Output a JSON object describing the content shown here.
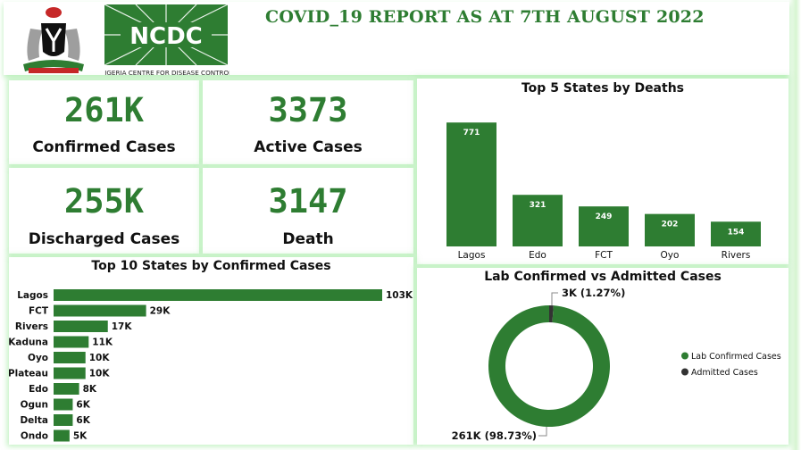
{
  "header": {
    "title": "COVID_19 REPORT AS AT 7TH AUGUST 2022",
    "logo_text": "NCDC",
    "logo_subtext": "NIGERIA CENTRE FOR DISEASE CONTROL",
    "coat_of_arms": "nigeria-coat-of-arms-icon"
  },
  "kpis": {
    "confirmed": {
      "value": "261K",
      "label": "Confirmed Cases"
    },
    "active": {
      "value": "3373",
      "label": "Active Cases"
    },
    "discharged": {
      "value": "255K",
      "label": "Discharged Cases"
    },
    "death": {
      "value": "3147",
      "label": "Death"
    }
  },
  "colors": {
    "accent": "#2e7d32",
    "dark": "#333333",
    "glow": "#8ce68c"
  },
  "chart_data": [
    {
      "type": "bar",
      "title": "Top 5 States by Deaths",
      "categories": [
        "Lagos",
        "Edo",
        "FCT",
        "Oyo",
        "Rivers"
      ],
      "values": [
        771,
        321,
        249,
        202,
        154
      ],
      "labels": [
        "771",
        "321",
        "249",
        "202",
        "154"
      ],
      "ylim": [
        0,
        800
      ]
    },
    {
      "type": "bar",
      "orientation": "horizontal",
      "title": "Top 10 States by Confirmed Cases",
      "categories": [
        "Lagos",
        "FCT",
        "Rivers",
        "Kaduna",
        "Oyo",
        "Plateau",
        "Edo",
        "Ogun",
        "Delta",
        "Ondo"
      ],
      "values": [
        103000,
        29000,
        17000,
        11000,
        10000,
        10000,
        8000,
        6000,
        6000,
        5000
      ],
      "labels": [
        "103K",
        "29K",
        "17K",
        "11K",
        "10K",
        "10K",
        "8K",
        "6K",
        "6K",
        "5K"
      ],
      "xlim": [
        0,
        103000
      ]
    },
    {
      "type": "pie",
      "donut": true,
      "title": "Lab Confirmed vs Admitted Cases",
      "categories": [
        "Lab Confirmed Cases",
        "Admitted Cases"
      ],
      "values": [
        261000,
        3000
      ],
      "percent": [
        98.73,
        1.27
      ],
      "labels": [
        "261K (98.73%)",
        "3K (1.27%)"
      ],
      "colors": [
        "#2e7d32",
        "#333333"
      ],
      "legend": "right"
    }
  ]
}
